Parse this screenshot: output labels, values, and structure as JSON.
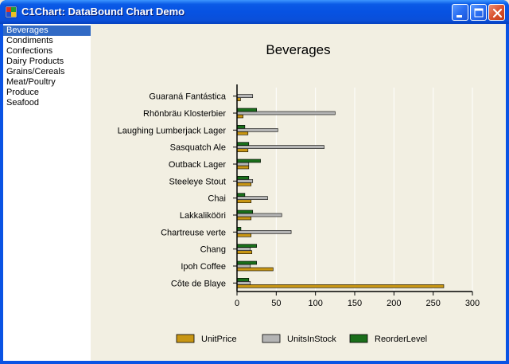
{
  "window": {
    "title": "C1Chart: DataBound Chart Demo"
  },
  "category_list": {
    "items": [
      "Beverages",
      "Condiments",
      "Confections",
      "Dairy Products",
      "Grains/Cereals",
      "Meat/Poultry",
      "Produce",
      "Seafood"
    ],
    "selected": "Beverages"
  },
  "colors": {
    "unit_price": "#c89614",
    "units_in_stock": "#b4b4b4",
    "reorder_level": "#1a6e1a",
    "selection": "#316ac5"
  },
  "icons": {
    "app": "app-window-icon",
    "minimize": "minimize-icon",
    "maximize": "maximize-icon",
    "close": "close-icon"
  },
  "chart_data": {
    "type": "bar",
    "orientation": "horizontal",
    "title": "Beverages",
    "categories": [
      "Côte de Blaye",
      "Ipoh Coffee",
      "Chang",
      "Chartreuse verte",
      "Lakkalikööri",
      "Chai",
      "Steeleye Stout",
      "Outback Lager",
      "Sasquatch Ale",
      "Laughing Lumberjack Lager",
      "Rhönbräu Klosterbier",
      "Guaraná Fantástica"
    ],
    "series": [
      {
        "name": "UnitPrice",
        "values": [
          263.5,
          46,
          19,
          18,
          18,
          18,
          18,
          15,
          14,
          14,
          7.75,
          4.5
        ]
      },
      {
        "name": "UnitsInStock",
        "values": [
          17,
          17,
          17,
          69,
          57,
          39,
          20,
          15,
          111,
          52,
          125,
          20
        ]
      },
      {
        "name": "ReorderLevel",
        "values": [
          15,
          25,
          25,
          5,
          20,
          10,
          15,
          30,
          15,
          10,
          25,
          0
        ]
      }
    ],
    "xlim": [
      0,
      300
    ],
    "xticks": [
      0,
      50,
      100,
      150,
      200,
      250,
      300
    ],
    "grid": true,
    "legend_position": "bottom"
  }
}
